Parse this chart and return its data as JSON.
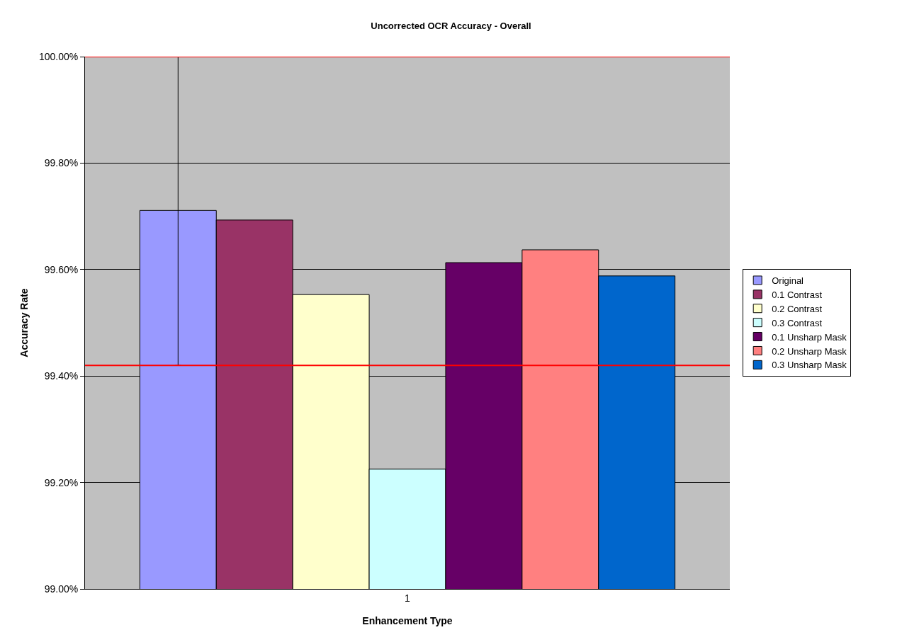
{
  "chart_data": {
    "type": "bar",
    "title": "Uncorrected OCR Accuracy - Overall",
    "xlabel": "Enhancement Type",
    "ylabel": "Accuracy Rate",
    "categories": [
      "1"
    ],
    "series": [
      {
        "name": "Original",
        "color": "#9999ff",
        "values": [
          99.711
        ],
        "errors": [
          [
            99.42,
            100
          ]
        ]
      },
      {
        "name": "0.1 Contrast",
        "color": "#993366",
        "values": [
          99.693
        ]
      },
      {
        "name": "0.2 Contrast",
        "color": "#ffffcc",
        "values": [
          99.553
        ]
      },
      {
        "name": "0.3 Contrast",
        "color": "#ccffff",
        "values": [
          99.225
        ]
      },
      {
        "name": "0.1 Unsharp Mask",
        "color": "#660066",
        "values": [
          99.613
        ]
      },
      {
        "name": "0.2 Unsharp Mask",
        "color": "#ff8080",
        "values": [
          99.637
        ]
      },
      {
        "name": "0.3 Unsharp Mask",
        "color": "#0066cc",
        "values": [
          99.588
        ]
      }
    ],
    "ylim": [
      99,
      100
    ],
    "yticks": [
      {
        "value": 99,
        "label": "99.00%"
      },
      {
        "value": 99.2,
        "label": "99.20%"
      },
      {
        "value": 99.4,
        "label": "99.40%"
      },
      {
        "value": 99.6,
        "label": "99.60%"
      },
      {
        "value": 99.8,
        "label": "99.80%"
      },
      {
        "value": 100,
        "label": "100.00%"
      }
    ],
    "ref_lines": [
      {
        "axis": "y",
        "value": 100,
        "color": "#ff0000"
      },
      {
        "axis": "y",
        "value": 99.42,
        "color": "#ff0000"
      }
    ],
    "grid": "y",
    "legend": "right"
  }
}
